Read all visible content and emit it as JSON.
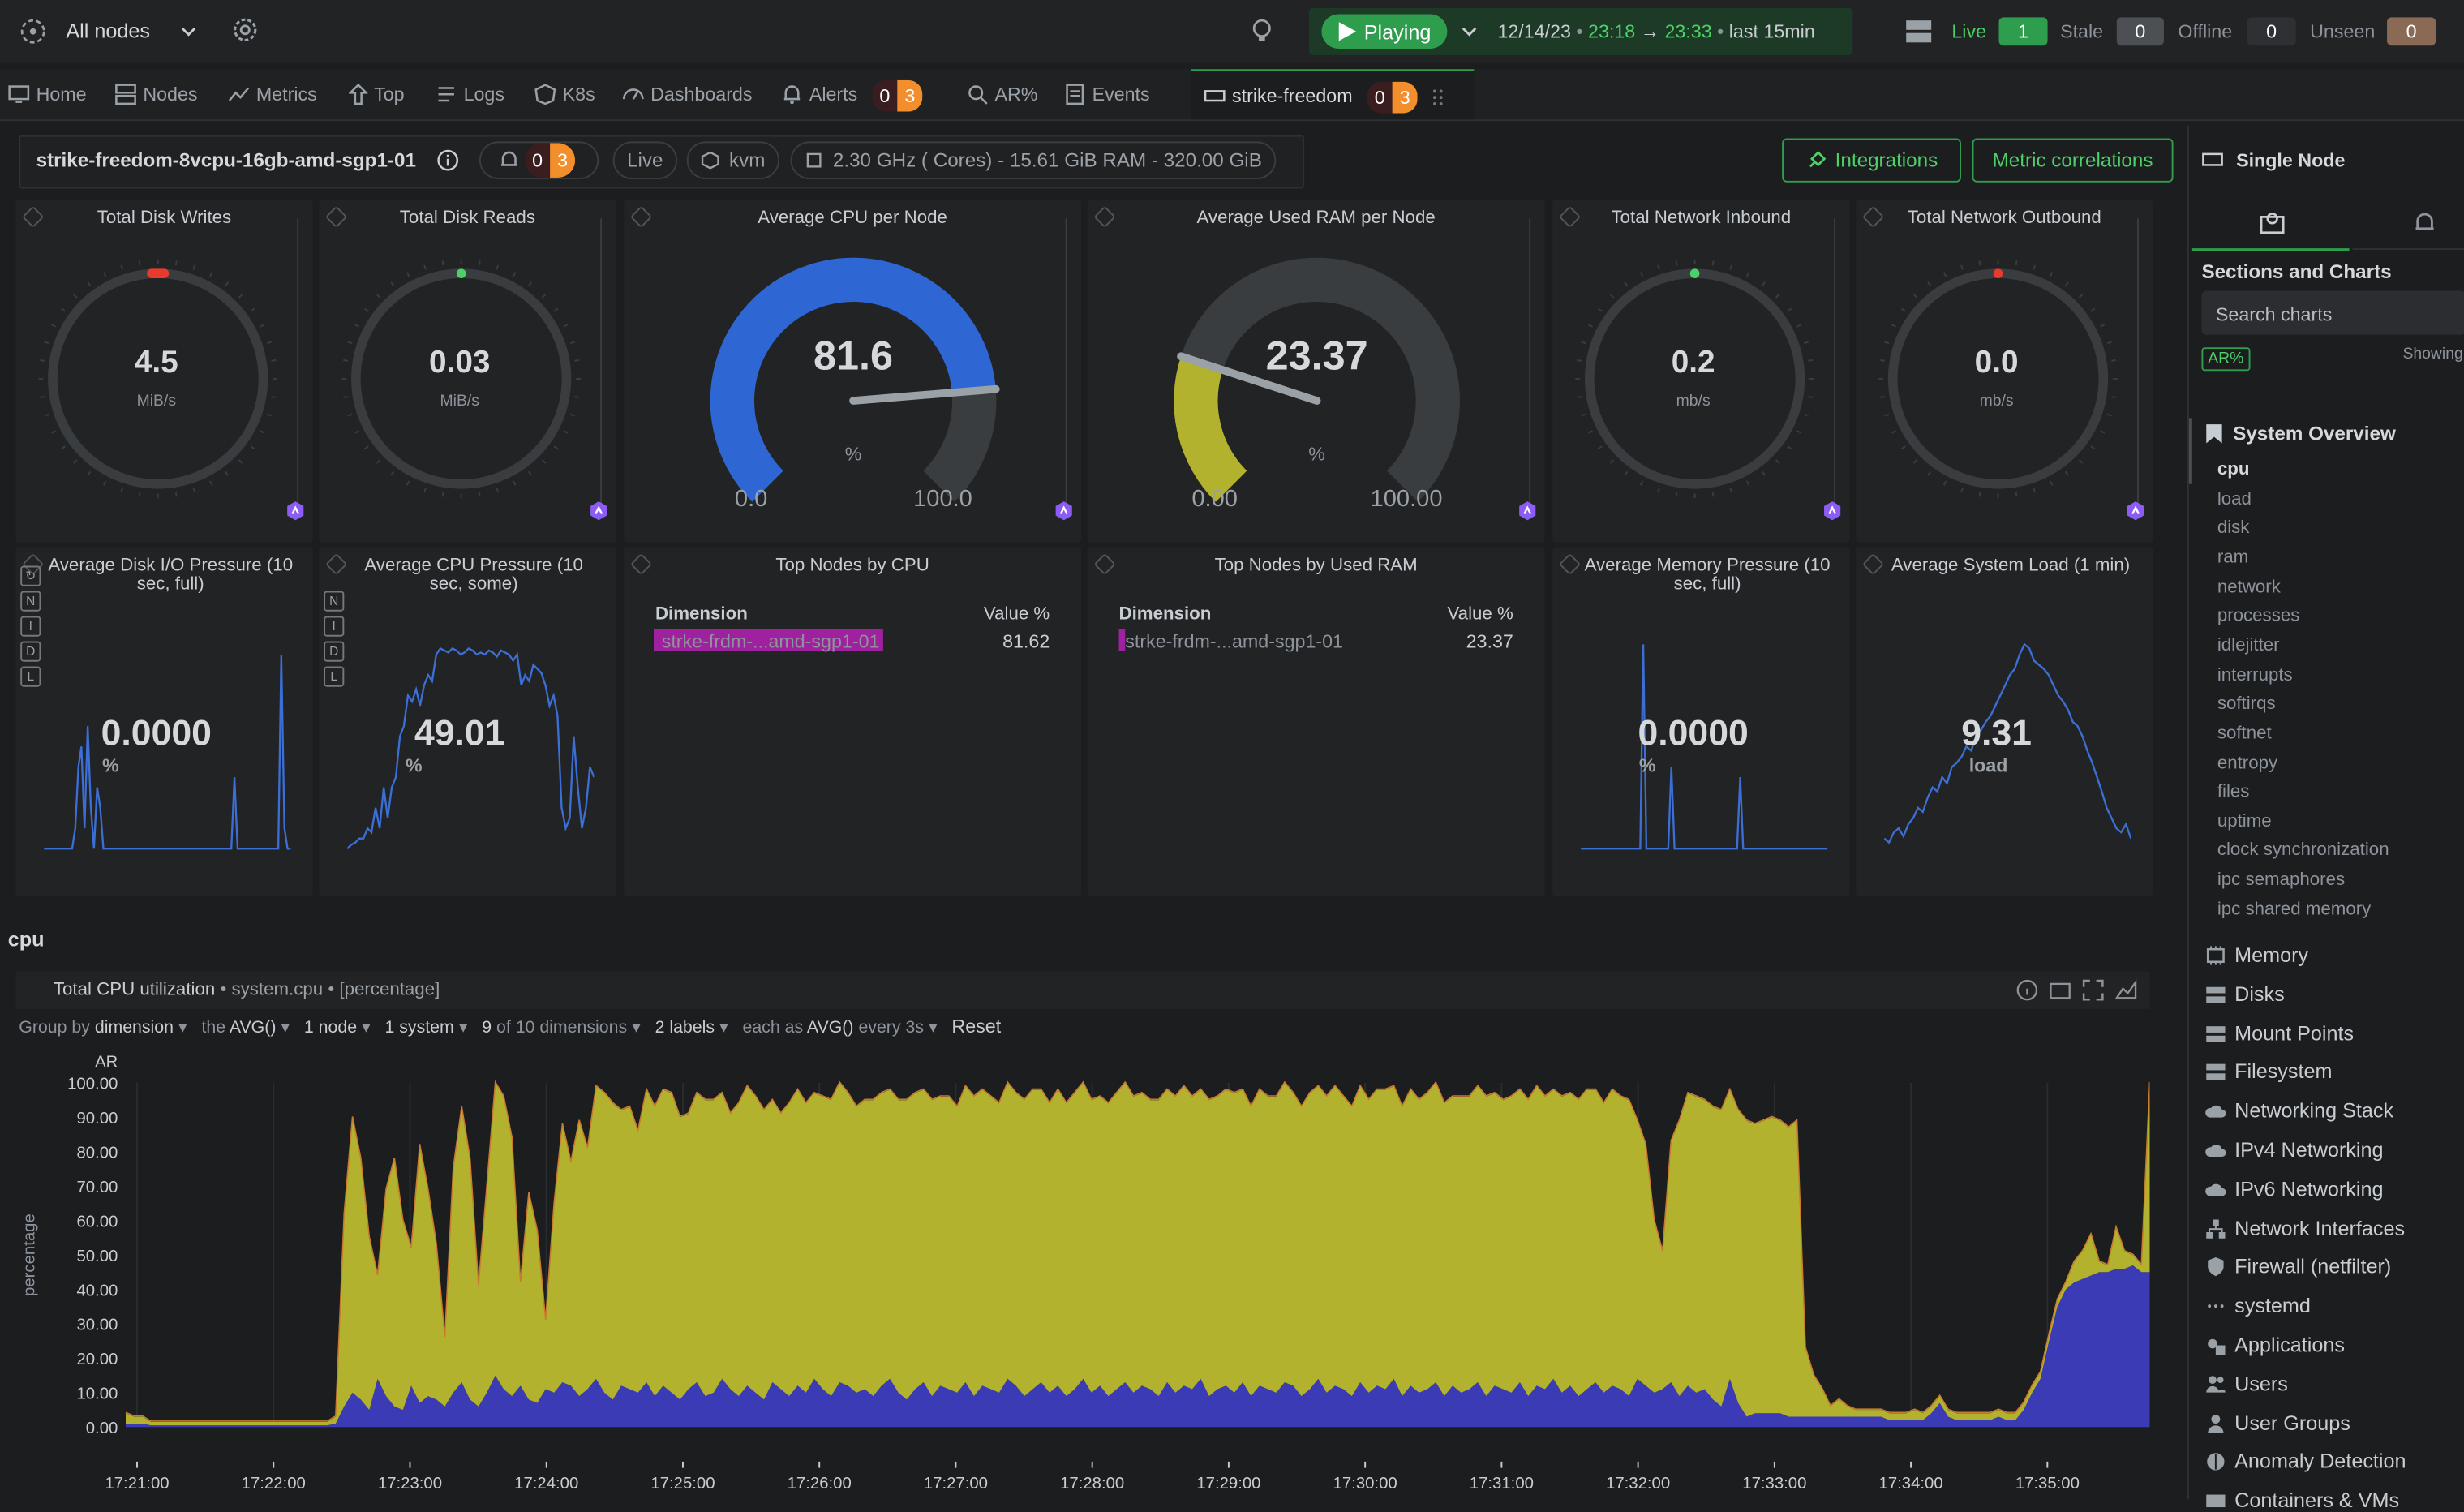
{
  "topbar": {
    "node_scope": "All nodes",
    "play_label": "Playing",
    "date": "12/14/23",
    "time_from": "23:18",
    "arrow": "→",
    "time_to": "23:33",
    "last_label": "last",
    "last_value": "15min",
    "status": [
      {
        "label": "Live",
        "count": "1"
      },
      {
        "label": "Stale",
        "count": "0"
      },
      {
        "label": "Offline",
        "count": "0"
      },
      {
        "label": "Unseen",
        "count": "0"
      }
    ],
    "colors": {
      "play": "#2e9d4e",
      "live": "#2e9d4e",
      "stale": "#4c5054",
      "unseen": "#8a6a55"
    }
  },
  "tabs": [
    {
      "label": "Home",
      "icon": "monitor-icon"
    },
    {
      "label": "Nodes",
      "icon": "nodes-icon"
    },
    {
      "label": "Metrics",
      "icon": "metrics-icon"
    },
    {
      "label": "Top",
      "icon": "top-icon"
    },
    {
      "label": "Logs",
      "icon": "logs-icon"
    },
    {
      "label": "K8s",
      "icon": "k8s-icon"
    },
    {
      "label": "Dashboards",
      "icon": "dashboards-icon"
    },
    {
      "label": "Alerts",
      "icon": "bell-icon",
      "critical": "0",
      "warning": "3"
    },
    {
      "label": "AR%",
      "icon": "ar-icon"
    },
    {
      "label": "Events",
      "icon": "events-icon"
    },
    {
      "label": "strike-freedom",
      "icon": "node-icon",
      "critical": "0",
      "warning": "3"
    }
  ],
  "nodebar": {
    "name": "strike-freedom-8vcpu-16gb-amd-sgp1-01",
    "alerts_critical": "0",
    "alerts_warning": "3",
    "live": "Live",
    "virt": "kvm",
    "specs": "2.30 GHz ( Cores) - 15.61 GiB RAM - 320.00 GiB",
    "integrations": "Integrations",
    "metric_correlations": "Metric correlations"
  },
  "gauges": [
    {
      "title": "Total Disk Writes",
      "value": "4.5",
      "unit": "MiB/s",
      "dot": "#e63b2e"
    },
    {
      "title": "Total Disk Reads",
      "value": "0.03",
      "unit": "MiB/s",
      "dot": "#4cd068"
    },
    {
      "title": "Average CPU per Node",
      "value": "81.6",
      "unit": "%",
      "min": "0.0",
      "max": "100.0",
      "fill": 0.816,
      "color": "#2e66d4"
    },
    {
      "title": "Average Used RAM per Node",
      "value": "23.37",
      "unit": "%",
      "min": "0.00",
      "max": "100.00",
      "fill": 0.2337,
      "color": "#b3b22e"
    },
    {
      "title": "Total Network Inbound",
      "value": "0.2",
      "unit": "mb/s",
      "dot": "#4cd068"
    },
    {
      "title": "Total Network Outbound",
      "value": "0.0",
      "unit": "mb/s",
      "dot": "#e63b2e"
    }
  ],
  "sparks": [
    {
      "title": "Average Disk I/O Pressure (10 sec, full)",
      "value": "0.0000",
      "unit": "%",
      "values": [
        0,
        0,
        0,
        0,
        0,
        0,
        0,
        0,
        0,
        0,
        0.1,
        0.4,
        0.5,
        0.1,
        0.6,
        0.2,
        0,
        0.3,
        0.2,
        0,
        0,
        0,
        0,
        0,
        0,
        0,
        0,
        0,
        0,
        0,
        0,
        0,
        0,
        0,
        0,
        0,
        0,
        0,
        0,
        0,
        0,
        0,
        0,
        0,
        0,
        0,
        0,
        0,
        0,
        0,
        0,
        0,
        0,
        0,
        0,
        0,
        0,
        0,
        0,
        0,
        0,
        0.35,
        0,
        0,
        0,
        0,
        0,
        0,
        0,
        0,
        0,
        0,
        0,
        0,
        0,
        0,
        0.95,
        0.1,
        0,
        0
      ]
    },
    {
      "title": "Average CPU Pressure (10 sec, some)",
      "value": "49.01",
      "unit": "%",
      "values": [
        0,
        0.02,
        0.03,
        0.05,
        0.05,
        0.1,
        0.08,
        0.2,
        0.1,
        0.3,
        0.15,
        0.3,
        0.35,
        0.55,
        0.6,
        0.75,
        0.72,
        0.78,
        0.7,
        0.8,
        0.85,
        0.82,
        0.95,
        0.98,
        0.97,
        0.96,
        0.98,
        0.97,
        0.95,
        0.96,
        0.98,
        0.97,
        0.95,
        0.96,
        0.95,
        0.97,
        0.96,
        0.94,
        0.97,
        0.96,
        0.95,
        0.92,
        0.95,
        0.8,
        0.85,
        0.82,
        0.9,
        0.88,
        0.86,
        0.8,
        0.7,
        0.75,
        0.65,
        0.2,
        0.1,
        0.15,
        0.55,
        0.3,
        0.1,
        0.2,
        0.4,
        0.35
      ]
    },
    {
      "title": "Average Memory Pressure (10 sec, full)",
      "value": "0.0000",
      "unit": "%",
      "values": [
        0,
        0,
        0,
        0,
        0,
        0,
        0,
        0,
        0,
        0,
        0,
        0,
        0,
        0,
        0,
        0,
        0,
        0,
        0,
        0,
        1,
        0,
        0,
        0,
        0,
        0,
        0,
        0,
        0,
        0.4,
        0,
        0,
        0,
        0,
        0,
        0,
        0,
        0,
        0,
        0,
        0,
        0,
        0,
        0,
        0,
        0,
        0,
        0,
        0,
        0,
        0,
        0.35,
        0,
        0,
        0,
        0,
        0,
        0,
        0,
        0,
        0,
        0,
        0,
        0,
        0,
        0,
        0,
        0,
        0,
        0,
        0,
        0,
        0,
        0,
        0,
        0,
        0,
        0,
        0,
        0
      ]
    },
    {
      "title": "Average System Load (1 min)",
      "value": "9.31",
      "unit": "load",
      "values": [
        0.05,
        0.03,
        0.08,
        0.1,
        0.06,
        0.12,
        0.15,
        0.2,
        0.18,
        0.25,
        0.3,
        0.28,
        0.35,
        0.32,
        0.4,
        0.42,
        0.45,
        0.5,
        0.48,
        0.55,
        0.58,
        0.62,
        0.65,
        0.7,
        0.75,
        0.8,
        0.85,
        0.88,
        0.95,
        1.0,
        0.98,
        0.92,
        0.9,
        0.88,
        0.85,
        0.8,
        0.75,
        0.72,
        0.68,
        0.62,
        0.6,
        0.55,
        0.48,
        0.42,
        0.35,
        0.28,
        0.2,
        0.15,
        0.1,
        0.08,
        0.12,
        0.05
      ]
    }
  ],
  "topcpu": {
    "title": "Top Nodes by CPU",
    "dim_header": "Dimension",
    "val_header": "Value %",
    "row_name": "strke-frdm-...amd-sgp1-01",
    "row_value": "81.62"
  },
  "topram": {
    "title": "Top Nodes by Used RAM",
    "dim_header": "Dimension",
    "val_header": "Value %",
    "row_name": "strke-frdm-...amd-sgp1-01",
    "row_value": "23.37"
  },
  "section_title": "cpu",
  "chart": {
    "title": "Total CPU utilization",
    "context": "system.cpu",
    "units": "[percentage]",
    "controls": {
      "group_by_label": "Group by",
      "group_by": "dimension",
      "the_label": "the",
      "aggregation": "AVG()",
      "nodes": "1 node",
      "systems": "1 system",
      "dims_count": "9",
      "dims_rest": "of 10 dimensions",
      "labels": "2 labels",
      "each_as": "each as",
      "time_agg": "AVG()",
      "every": "every 3s",
      "reset": "Reset"
    },
    "ar_label": "AR",
    "ylabel": "percentage"
  },
  "chart_data": {
    "type": "area",
    "title": "Total CPU utilization",
    "ylabel": "percentage",
    "ylim": [
      0,
      100
    ],
    "yticks": [
      "100.00",
      "90.00",
      "80.00",
      "70.00",
      "60.00",
      "50.00",
      "40.00",
      "30.00",
      "20.00",
      "10.00",
      "0.00"
    ],
    "x_ticks": [
      "17:21:00",
      "17:22:00",
      "17:23:00",
      "17:24:00",
      "17:25:00",
      "17:26:00",
      "17:27:00",
      "17:28:00",
      "17:29:00",
      "17:30:00",
      "17:31:00",
      "17:32:00",
      "17:33:00",
      "17:34:00",
      "17:35:00"
    ],
    "x_start": "17:20:55",
    "x_end": "17:35:45",
    "series": [
      {
        "color": "#3b3bb5",
        "values": [
          1,
          1,
          1,
          0.5,
          0.5,
          0.5,
          0.5,
          0.5,
          0.5,
          0.5,
          0.5,
          0.5,
          0.5,
          0.5,
          0.5,
          0.5,
          0.5,
          0.5,
          0.5,
          0.5,
          0.5,
          0.5,
          0.5,
          0.5,
          0.5,
          1,
          6,
          10,
          8,
          5,
          14,
          9,
          6,
          5,
          12,
          7,
          9,
          8,
          6,
          10,
          13,
          8,
          6,
          10,
          15,
          11,
          9,
          12,
          8,
          7,
          11,
          10,
          13,
          12,
          9,
          11,
          14,
          10,
          8,
          12,
          11,
          10,
          13,
          9,
          12,
          10,
          8,
          11,
          13,
          9,
          10,
          14,
          11,
          9,
          12,
          10,
          8,
          13,
          11,
          9,
          12,
          10,
          14,
          11,
          9,
          13,
          12,
          10,
          11,
          9,
          12,
          14,
          10,
          8,
          11,
          13,
          9,
          12,
          11,
          10,
          13,
          9,
          12,
          11,
          10,
          14,
          12,
          9,
          11,
          13,
          10,
          12,
          9,
          11,
          14,
          10,
          12,
          9,
          11,
          13,
          10,
          12,
          11,
          9,
          13,
          10,
          12,
          11,
          14,
          9,
          11,
          12,
          10,
          13,
          9,
          12,
          11,
          10,
          13,
          12,
          9,
          11,
          14,
          10,
          12,
          11,
          9,
          13,
          10,
          12,
          11,
          14,
          9,
          12,
          10,
          11,
          13,
          9,
          12,
          10,
          11,
          13,
          9,
          12,
          11,
          10,
          13,
          9,
          12,
          11,
          14,
          10,
          12,
          9,
          11,
          13,
          10,
          12,
          11,
          9,
          14,
          12,
          10,
          11,
          13,
          9,
          12,
          10,
          11,
          8,
          6,
          14,
          7,
          3,
          4,
          4,
          4,
          4,
          3,
          3,
          3,
          3,
          3,
          3,
          3,
          3,
          3,
          3,
          3,
          3,
          2,
          2,
          2,
          2,
          2,
          4,
          7,
          3,
          2,
          2,
          2,
          2,
          2,
          3,
          2,
          2,
          5,
          10,
          14,
          25,
          35,
          40,
          42,
          43,
          44,
          45,
          45,
          46,
          46,
          47,
          45,
          45
        ]
      },
      {
        "color": "#b3b22e",
        "values": [
          3,
          2,
          2,
          1,
          1,
          1,
          1,
          1,
          1,
          1,
          1,
          1,
          1,
          1,
          1,
          1,
          1,
          1,
          1,
          1,
          1,
          1,
          1,
          1,
          1,
          2,
          56,
          80,
          70,
          50,
          30,
          60,
          72,
          55,
          40,
          75,
          60,
          45,
          20,
          65,
          80,
          70,
          35,
          60,
          90,
          85,
          75,
          30,
          60,
          50,
          20,
          55,
          75,
          65,
          80,
          70,
          85,
          87,
          86,
          80,
          82,
          76,
          85,
          84,
          86,
          87,
          82,
          80,
          84,
          86,
          85,
          83,
          80,
          85,
          87,
          86,
          84,
          82,
          80,
          85,
          86,
          84,
          83,
          85,
          86,
          87,
          85,
          83,
          84,
          86,
          85,
          84,
          85,
          87,
          86,
          85,
          86,
          84,
          85,
          83,
          86,
          87,
          86,
          85,
          84,
          86,
          85,
          86,
          87,
          85,
          84,
          86,
          85,
          86,
          87,
          85,
          84,
          85,
          86,
          87,
          86,
          85,
          84,
          86,
          85,
          86,
          87,
          85,
          84,
          86,
          85,
          86,
          87,
          85,
          84,
          86,
          85,
          86,
          87,
          85,
          84,
          86,
          85,
          86,
          87,
          85,
          84,
          86,
          85,
          86,
          87,
          85,
          84,
          86,
          85,
          86,
          87,
          85,
          84,
          86,
          85,
          86,
          87,
          85,
          84,
          86,
          85,
          86,
          87,
          85,
          84,
          86,
          85,
          86,
          87,
          85,
          84,
          86,
          85,
          86,
          75,
          70,
          50,
          40,
          70,
          80,
          85,
          86,
          84,
          85,
          86,
          84,
          85,
          86,
          84,
          85,
          86,
          85,
          84,
          86,
          20,
          12,
          8,
          3,
          5,
          3,
          2,
          2,
          2,
          2,
          2,
          2,
          2,
          3,
          2,
          2,
          2,
          2,
          2,
          2,
          2,
          2,
          2,
          2,
          2,
          2,
          2,
          2,
          2,
          2,
          2,
          2,
          6,
          8,
          12,
          3,
          2,
          12,
          5,
          3,
          2,
          55,
          80,
          98,
          70,
          45,
          30,
          25,
          20,
          22,
          30,
          45,
          68,
          86,
          85,
          82,
          78,
          75,
          73,
          70,
          65,
          60,
          52,
          45,
          40,
          35,
          42,
          50
        ]
      }
    ]
  },
  "sidebar": {
    "title": "Single Node",
    "sections_title": "Sections and Charts",
    "search_placeholder": "Search charts",
    "showing": "Showing",
    "ar_badge": "AR%",
    "overview": "System Overview",
    "overview_items": [
      "cpu",
      "load",
      "disk",
      "ram",
      "network",
      "processes",
      "idlejitter",
      "interrupts",
      "softirqs",
      "softnet",
      "entropy",
      "files",
      "uptime",
      "clock synchronization",
      "ipc semaphores",
      "ipc shared memory"
    ],
    "sections": [
      {
        "label": "Memory",
        "icon": "memory-icon"
      },
      {
        "label": "Disks",
        "icon": "disk-icon"
      },
      {
        "label": "Mount Points",
        "icon": "mount-icon"
      },
      {
        "label": "Filesystem",
        "icon": "filesystem-icon"
      },
      {
        "label": "Networking Stack",
        "icon": "cloud-icon"
      },
      {
        "label": "IPv4 Networking",
        "icon": "cloud-icon"
      },
      {
        "label": "IPv6 Networking",
        "icon": "cloud-icon"
      },
      {
        "label": "Network Interfaces",
        "icon": "network-icon"
      },
      {
        "label": "Firewall (netfilter)",
        "icon": "shield-icon"
      },
      {
        "label": "systemd",
        "icon": "dots-icon"
      },
      {
        "label": "Applications",
        "icon": "apps-icon"
      },
      {
        "label": "Users",
        "icon": "users-icon"
      },
      {
        "label": "User Groups",
        "icon": "user-group-icon"
      },
      {
        "label": "Anomaly Detection",
        "icon": "anomaly-icon"
      },
      {
        "label": "Containers & VMs",
        "icon": "containers-icon"
      }
    ]
  }
}
